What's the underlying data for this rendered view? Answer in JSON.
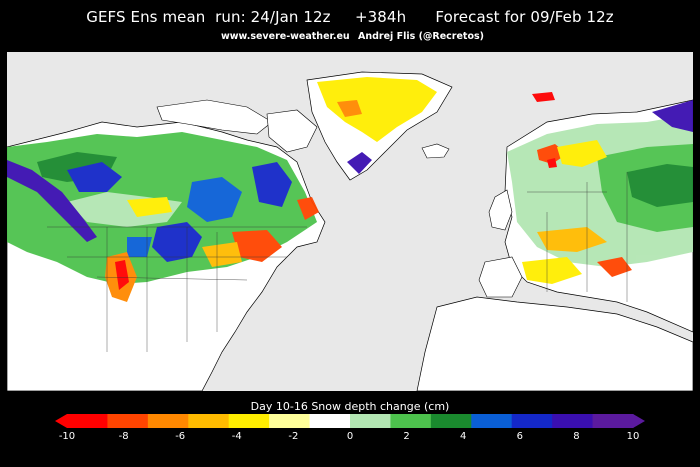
{
  "header": {
    "title": "GEFS Ens mean  run: 24/Jan 12z     +384h      Forecast for 09/Feb 12z",
    "site": "www.severe-weather.eu",
    "author": "Andrej Flis (@Recretos)"
  },
  "legend": {
    "title": "Day 10-16 Snow depth change (cm)",
    "ticks": [
      "-10",
      "-8",
      "-6",
      "-4",
      "-2",
      "0",
      "2",
      "4",
      "6",
      "8",
      "10"
    ],
    "colors": [
      "#ff0000",
      "#ff4400",
      "#ff8800",
      "#ffbb00",
      "#ffee00",
      "#ffff99",
      "#ffffff",
      "#b3e6b3",
      "#4dc24d",
      "#1a8a2e",
      "#0a5fd6",
      "#1428c8",
      "#3a0fb0",
      "#5b1a9e"
    ]
  },
  "map": {
    "ocean_color": "#e8e8e8",
    "land_color": "#ffffff",
    "border_color": "#000000"
  }
}
